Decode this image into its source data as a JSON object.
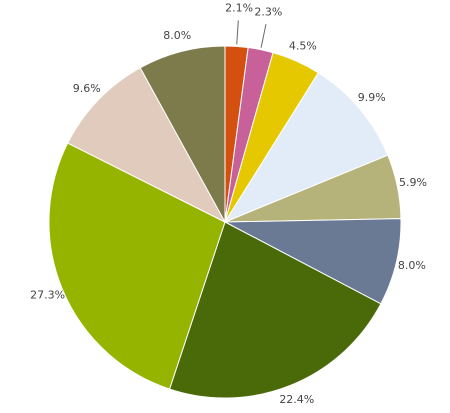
{
  "chart_data": {
    "type": "pie",
    "values": [
      2.1,
      2.3,
      4.5,
      9.9,
      5.9,
      8.0,
      22.4,
      27.3,
      9.6,
      8.0
    ],
    "value_labels": [
      "2.1%",
      "2.3%",
      "4.5%",
      "9.9%",
      "5.9%",
      "8.0%",
      "22.4%",
      "27.3%",
      "9.6%",
      "8.0%"
    ],
    "colors": [
      "#d4500f",
      "#c8609a",
      "#e5c800",
      "#e2ecf8",
      "#b5b37a",
      "#6b7a94",
      "#4a6a0a",
      "#94b400",
      "#e0cbbd",
      "#7d7a4b"
    ]
  }
}
